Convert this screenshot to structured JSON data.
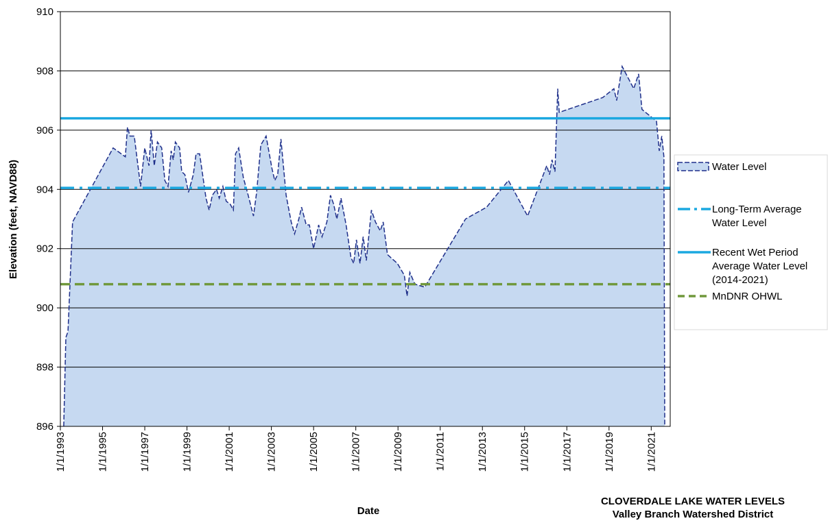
{
  "chart_data": {
    "type": "area",
    "title": "CLOVERDALE LAKE WATER LEVELS",
    "subtitle": "Valley Branch Watershed District",
    "x_label": "Date",
    "y_label": "Elevation (feet, NAVD88)",
    "xlim": [
      1993,
      2021.9
    ],
    "xticks": [
      {
        "value": 1993,
        "label": "1/1/1993"
      },
      {
        "value": 1995,
        "label": "1/1/1995"
      },
      {
        "value": 1997,
        "label": "1/1/1997"
      },
      {
        "value": 1999,
        "label": "1/1/1999"
      },
      {
        "value": 2001,
        "label": "1/1/2001"
      },
      {
        "value": 2003,
        "label": "1/1/2003"
      },
      {
        "value": 2005,
        "label": "1/1/2005"
      },
      {
        "value": 2007,
        "label": "1/1/2007"
      },
      {
        "value": 2009,
        "label": "1/1/2009"
      },
      {
        "value": 2011,
        "label": "1/1/2011"
      },
      {
        "value": 2013,
        "label": "1/1/2013"
      },
      {
        "value": 2015,
        "label": "1/1/2015"
      },
      {
        "value": 2017,
        "label": "1/1/2017"
      },
      {
        "value": 2019,
        "label": "1/1/2019"
      },
      {
        "value": 2021,
        "label": "1/1/2021"
      }
    ],
    "ylim": [
      896,
      910
    ],
    "yticks": [
      896,
      898,
      900,
      902,
      904,
      906,
      908,
      910
    ],
    "grid": true,
    "legend": "right",
    "series": [
      {
        "name": "Water Level",
        "color": "#1f2f8a",
        "fill": "#c6d9f1",
        "x": [
          1993.16,
          1993.26,
          1993.36,
          1993.58,
          1995.5,
          1996.08,
          1996.18,
          1996.3,
          1996.5,
          1996.8,
          1997.0,
          1997.2,
          1997.3,
          1997.45,
          1997.6,
          1997.8,
          1997.95,
          1998.1,
          1998.25,
          1998.35,
          1998.45,
          1998.65,
          1998.75,
          1998.9,
          1999.07,
          1999.3,
          1999.43,
          1999.6,
          1999.9,
          2000.05,
          2000.2,
          2000.4,
          2000.53,
          2000.7,
          2000.86,
          2001.05,
          2001.2,
          2001.3,
          2001.45,
          2001.67,
          2001.9,
          2002.15,
          2002.3,
          2002.5,
          2002.75,
          2003.03,
          2003.16,
          2003.3,
          2003.45,
          2003.7,
          2003.94,
          2004.1,
          2004.3,
          2004.43,
          2004.65,
          2004.8,
          2005.0,
          2005.24,
          2005.4,
          2005.63,
          2005.8,
          2005.95,
          2006.1,
          2006.3,
          2006.54,
          2006.77,
          2006.9,
          2007.03,
          2007.2,
          2007.35,
          2007.5,
          2007.74,
          2007.93,
          2008.16,
          2008.3,
          2008.5,
          2008.97,
          2009.3,
          2009.43,
          2009.56,
          2009.8,
          2010.27,
          2012.2,
          2013.2,
          2014.23,
          2015.14,
          2016.05,
          2016.18,
          2016.3,
          2016.44,
          2016.57,
          2016.64,
          2018.7,
          2019.23,
          2019.36,
          2019.62,
          2020.17,
          2020.4,
          2020.56,
          2021.25,
          2021.38,
          2021.5,
          2021.6,
          2021.64
        ],
        "values": [
          896,
          899.0,
          899.2,
          902.9,
          905.4,
          905.1,
          906.1,
          905.8,
          905.8,
          904.1,
          905.4,
          904.8,
          906.0,
          904.8,
          905.6,
          905.4,
          904.3,
          904.1,
          905.3,
          905.0,
          905.6,
          905.4,
          904.6,
          904.5,
          903.9,
          904.5,
          905.2,
          905.2,
          903.7,
          903.3,
          903.8,
          904.0,
          903.7,
          904.1,
          903.6,
          903.5,
          903.3,
          905.2,
          905.4,
          904.4,
          903.8,
          903.1,
          903.9,
          905.5,
          905.8,
          904.7,
          904.3,
          904.5,
          905.7,
          903.8,
          902.9,
          902.5,
          903.0,
          903.4,
          902.8,
          902.8,
          902.0,
          902.8,
          902.4,
          902.9,
          903.8,
          903.5,
          903.0,
          903.7,
          902.8,
          901.7,
          901.5,
          902.3,
          901.5,
          902.4,
          901.6,
          903.3,
          902.9,
          902.6,
          902.9,
          901.8,
          901.5,
          901.1,
          900.4,
          901.2,
          900.8,
          900.7,
          903.0,
          903.4,
          904.3,
          903.1,
          904.8,
          904.5,
          905.0,
          904.6,
          907.4,
          906.6,
          907.1,
          907.4,
          907.0,
          908.15,
          907.4,
          907.9,
          906.7,
          906.3,
          905.3,
          905.8,
          905.1,
          896
        ]
      }
    ],
    "reference_lines": [
      {
        "name": "Long-Term Average Water Level",
        "value": 904.05,
        "color": "#1ba8e0",
        "style": "dash-dot"
      },
      {
        "name": "Recent Wet Period Average Water Level (2014-2021)",
        "value": 906.4,
        "color": "#1ba8e0",
        "style": "solid"
      },
      {
        "name": "MnDNR OHWL",
        "value": 900.8,
        "color": "#70983c",
        "style": "dashed"
      }
    ]
  }
}
